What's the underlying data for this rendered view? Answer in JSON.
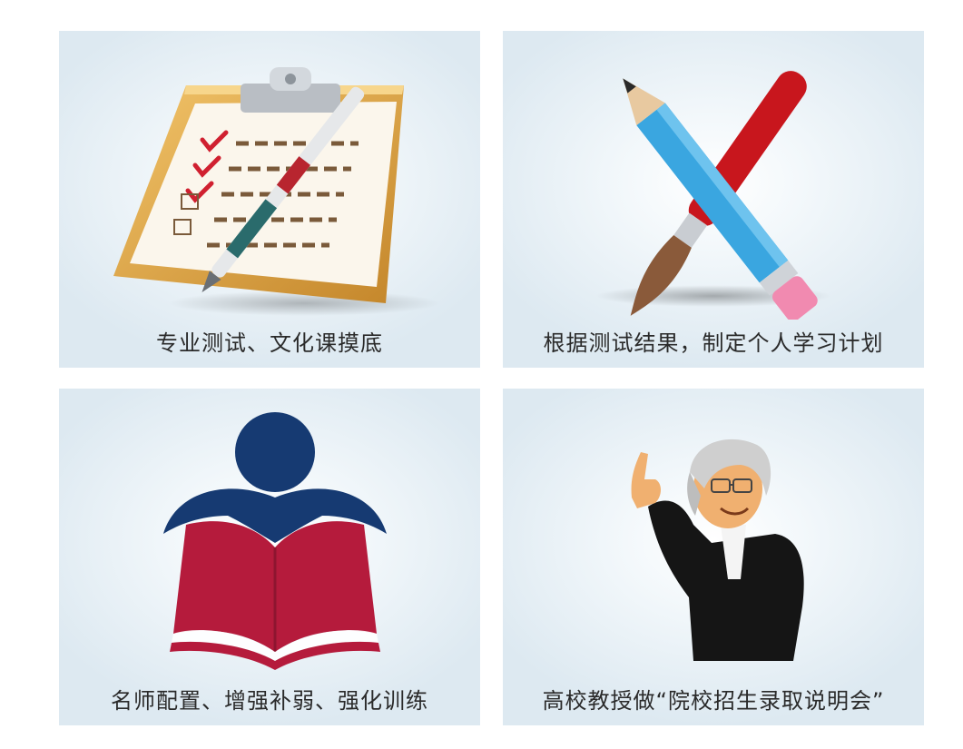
{
  "cards": [
    {
      "caption": "专业测试、文化课摸底",
      "icon": "clipboard-checklist-icon"
    },
    {
      "caption": "根据测试结果，制定个人学习计划",
      "icon": "pencil-brush-icon"
    },
    {
      "caption": "名师配置、增强补弱、强化训练",
      "icon": "reader-book-icon"
    },
    {
      "caption": "高校教授做“院校招生录取说明会”",
      "icon": "professor-icon"
    }
  ],
  "colors": {
    "card_bg": "#dde9f1",
    "caption_text": "#2a2a2a",
    "pencil_blue": "#3aa6e0",
    "pencil_red": "#c8161d",
    "book_red": "#b51b3c",
    "figure_navy": "#163a72",
    "clipboard_gold": "#d8a040",
    "check_red": "#d02030"
  }
}
